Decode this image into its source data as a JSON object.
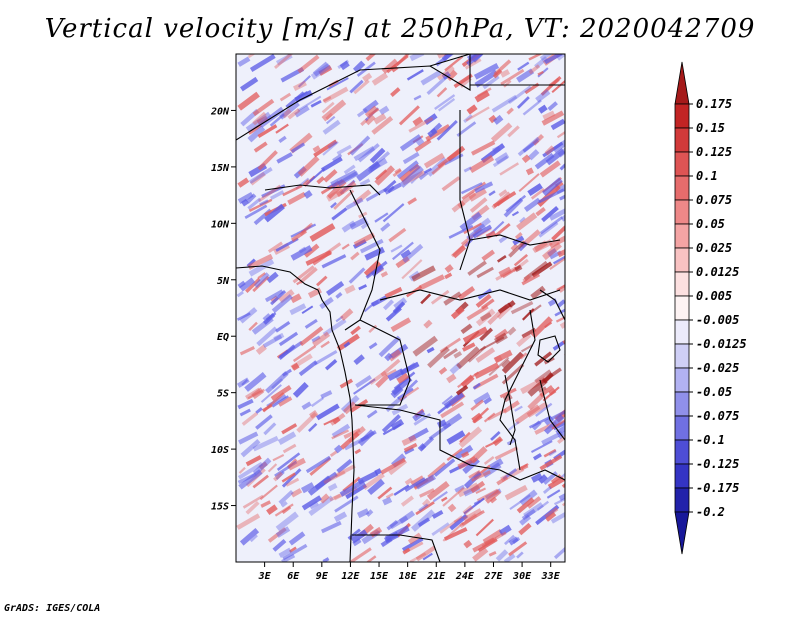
{
  "title": "Vertical velocity [m/s] at 250hPa, VT: 2020042709",
  "footer": "GrADS: IGES/COLA",
  "map": {
    "lon_range": [
      0,
      34.5
    ],
    "lat_range": [
      -20,
      25
    ],
    "x_ticks": [
      {
        "value": 3,
        "label": "3E"
      },
      {
        "value": 6,
        "label": "6E"
      },
      {
        "value": 9,
        "label": "9E"
      },
      {
        "value": 12,
        "label": "12E"
      },
      {
        "value": 15,
        "label": "15E"
      },
      {
        "value": 18,
        "label": "18E"
      },
      {
        "value": 21,
        "label": "21E"
      },
      {
        "value": 24,
        "label": "24E"
      },
      {
        "value": 27,
        "label": "27E"
      },
      {
        "value": 30,
        "label": "30E"
      },
      {
        "value": 33,
        "label": "33E"
      }
    ],
    "y_ticks": [
      {
        "value": 20,
        "label": "20N"
      },
      {
        "value": 15,
        "label": "15N"
      },
      {
        "value": 10,
        "label": "10N"
      },
      {
        "value": 5,
        "label": "5N"
      },
      {
        "value": 0,
        "label": "EQ"
      },
      {
        "value": -5,
        "label": "5S"
      },
      {
        "value": -10,
        "label": "10S"
      },
      {
        "value": -15,
        "label": "15S"
      }
    ],
    "colors": {
      "negative": "#5a5ae6",
      "positive": "#e25a5a",
      "strong_positive": "#a01818",
      "background": "#eef0fb",
      "border": "#000000"
    }
  },
  "colorbar": {
    "levels": [
      "0.175",
      "0.15",
      "0.125",
      "0.1",
      "0.075",
      "0.05",
      "0.025",
      "0.0125",
      "0.005",
      "-0.005",
      "-0.0125",
      "-0.025",
      "-0.05",
      "-0.075",
      "-0.1",
      "-0.125",
      "-0.175",
      "-0.2"
    ],
    "colors": [
      "#a51a1a",
      "#c22424",
      "#d23a3a",
      "#de5454",
      "#e66c6c",
      "#ee8888",
      "#f4a4a4",
      "#f8c2c2",
      "#fce0e0",
      "#fdf3f3",
      "#ecebfb",
      "#cfcff6",
      "#b2b2f2",
      "#9090ea",
      "#7070e2",
      "#4e4ed6",
      "#3434c4",
      "#2222aa",
      "#18189a"
    ]
  }
}
